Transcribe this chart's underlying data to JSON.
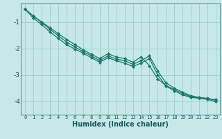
{
  "xlabel": "Humidex (Indice chaleur)",
  "ylabel": "",
  "bg_color": "#c6e8e8",
  "grid_color": "#a0cccc",
  "line_color": "#1a7868",
  "marker_color": "#1a7868",
  "x_values": [
    0,
    1,
    2,
    3,
    4,
    5,
    6,
    7,
    8,
    9,
    10,
    11,
    12,
    13,
    14,
    15,
    16,
    17,
    18,
    19,
    20,
    21,
    22,
    23
  ],
  "line1": [
    -0.52,
    -0.78,
    -1.0,
    -1.22,
    -1.44,
    -1.66,
    -1.85,
    -2.05,
    -2.22,
    -2.38,
    -2.2,
    -2.32,
    -2.38,
    -2.52,
    -2.32,
    -2.65,
    -3.15,
    -3.4,
    -3.55,
    -3.7,
    -3.82,
    -3.87,
    -3.9,
    -3.93
  ],
  "line2": [
    -0.52,
    -0.78,
    -1.02,
    -1.28,
    -1.52,
    -1.76,
    -1.94,
    -2.12,
    -2.28,
    -2.46,
    -2.28,
    -2.4,
    -2.46,
    -2.6,
    -2.46,
    -2.28,
    -2.85,
    -3.3,
    -3.5,
    -3.65,
    -3.78,
    -3.85,
    -3.88,
    -3.95
  ],
  "line3": [
    -0.52,
    -0.86,
    -1.1,
    -1.38,
    -1.62,
    -1.86,
    -2.02,
    -2.18,
    -2.35,
    -2.52,
    -2.35,
    -2.46,
    -2.55,
    -2.68,
    -2.55,
    -2.38,
    -3.0,
    -3.42,
    -3.6,
    -3.75,
    -3.85,
    -3.88,
    -3.92,
    -4.0
  ],
  "ylim": [
    -4.5,
    -0.3
  ],
  "xlim": [
    -0.5,
    23.5
  ],
  "yticks": [
    -4,
    -3,
    -2,
    -1
  ],
  "xticks": [
    0,
    1,
    2,
    3,
    4,
    5,
    6,
    7,
    8,
    9,
    10,
    11,
    12,
    13,
    14,
    15,
    16,
    17,
    18,
    19,
    20,
    21,
    22,
    23
  ]
}
